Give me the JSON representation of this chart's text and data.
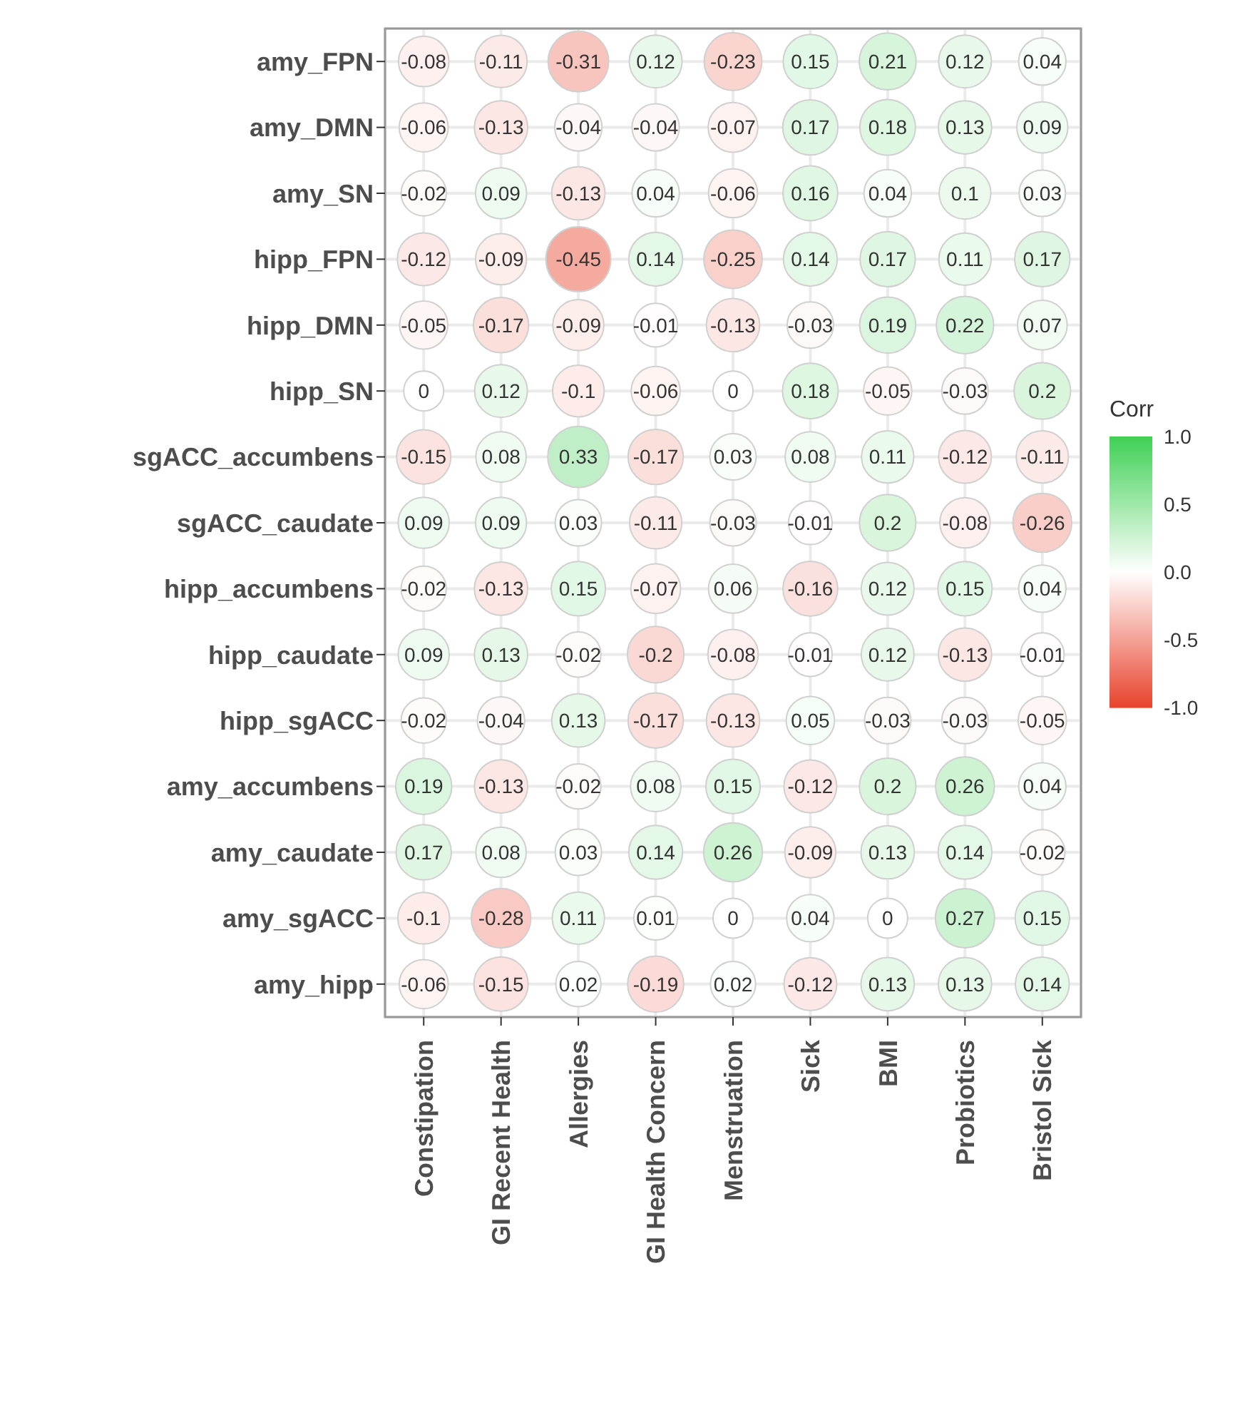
{
  "chart_data": {
    "type": "heatmap",
    "categories": [
      "Constipation",
      "GI Recent Health",
      "Allergies",
      "GI Health Concern",
      "Menstruation",
      "Sick",
      "BMI",
      "Probiotics",
      "Bristol Sick"
    ],
    "y_categories": [
      "amy_FPN",
      "amy_DMN",
      "amy_SN",
      "hipp_FPN",
      "hipp_DMN",
      "hipp_SN",
      "sgACC_accumbens",
      "sgACC_caudate",
      "hipp_accumbens",
      "hipp_caudate",
      "hipp_sgACC",
      "amy_accumbens",
      "amy_caudate",
      "amy_sgACC",
      "amy_hipp"
    ],
    "cells": [
      [
        -0.08,
        -0.11,
        -0.31,
        0.12,
        -0.23,
        0.15,
        0.21,
        0.12,
        0.04
      ],
      [
        -0.06,
        -0.13,
        -0.04,
        -0.04,
        -0.07,
        0.17,
        0.18,
        0.13,
        0.09
      ],
      [
        -0.02,
        0.09,
        -0.13,
        0.04,
        -0.06,
        0.16,
        0.04,
        0.1,
        0.03
      ],
      [
        -0.12,
        -0.09,
        -0.45,
        0.14,
        -0.25,
        0.14,
        0.17,
        0.11,
        0.17
      ],
      [
        -0.05,
        -0.17,
        -0.09,
        -0.01,
        -0.13,
        -0.03,
        0.19,
        0.22,
        0.07
      ],
      [
        0,
        0.12,
        -0.1,
        -0.06,
        0,
        0.18,
        -0.05,
        -0.03,
        0.2
      ],
      [
        -0.15,
        0.08,
        0.33,
        -0.17,
        0.03,
        0.08,
        0.11,
        -0.12,
        -0.11
      ],
      [
        0.09,
        0.09,
        0.03,
        -0.11,
        -0.03,
        -0.01,
        0.2,
        -0.08,
        -0.26
      ],
      [
        -0.02,
        -0.13,
        0.15,
        -0.07,
        0.06,
        -0.16,
        0.12,
        0.15,
        0.04
      ],
      [
        0.09,
        0.13,
        -0.02,
        -0.2,
        -0.08,
        -0.01,
        0.12,
        -0.13,
        -0.01
      ],
      [
        -0.02,
        -0.04,
        0.13,
        -0.17,
        -0.13,
        0.05,
        -0.03,
        -0.03,
        -0.05
      ],
      [
        0.19,
        -0.13,
        -0.02,
        0.08,
        0.15,
        -0.12,
        0.2,
        0.26,
        0.04
      ],
      [
        0.17,
        0.08,
        0.03,
        0.14,
        0.26,
        -0.09,
        0.13,
        0.14,
        -0.02
      ],
      [
        -0.1,
        -0.28,
        0.11,
        0.01,
        0,
        0.04,
        0,
        0.27,
        0.15
      ],
      [
        -0.06,
        -0.15,
        0.02,
        -0.19,
        0.02,
        -0.12,
        0.13,
        0.13,
        0.14
      ]
    ],
    "clabel": "Corr",
    "clim": [
      -1,
      1
    ],
    "cticks": [
      {
        "value": 1,
        "label": "1.0"
      },
      {
        "value": 0.5,
        "label": "0.5"
      },
      {
        "value": 0,
        "label": "0.0"
      },
      {
        "value": -0.5,
        "label": "-0.5"
      },
      {
        "value": -1,
        "label": "-1.0"
      }
    ],
    "data_labels": true,
    "grid": true
  }
}
